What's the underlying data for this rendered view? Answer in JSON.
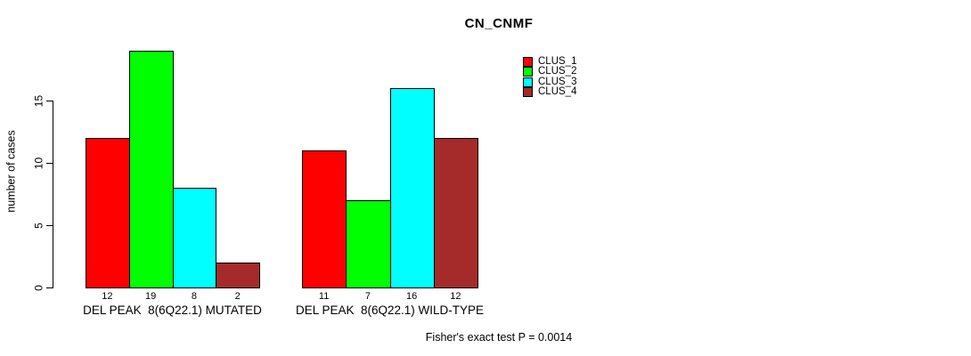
{
  "chart_data": {
    "type": "bar",
    "title": "CN_CNMF",
    "ylabel": "number of cases",
    "xlabel": "",
    "yticks": [
      0,
      5,
      10,
      15
    ],
    "ylim": [
      0,
      19
    ],
    "grid": false,
    "legend_position": "top-right",
    "bar_border_color": "#000000",
    "categories": [
      "DEL PEAK  8(6Q22.1) MUTATED",
      "DEL PEAK  8(6Q22.1) WILD-TYPE"
    ],
    "groups": [
      {
        "label": "DEL PEAK  8(6Q22.1) MUTATED",
        "values": [
          12,
          19,
          8,
          2
        ]
      },
      {
        "label": "DEL PEAK  8(6Q22.1) WILD-TYPE",
        "values": [
          11,
          7,
          16,
          12
        ]
      }
    ],
    "series": [
      {
        "name": "CLUS_1",
        "color": "#ff0000"
      },
      {
        "name": "CLUS_2",
        "color": "#00ff00"
      },
      {
        "name": "CLUS_3",
        "color": "#00ffff"
      },
      {
        "name": "CLUS_4",
        "color": "#a52a2a"
      }
    ],
    "annotation": "Fisher's exact test P = 0.0014"
  }
}
